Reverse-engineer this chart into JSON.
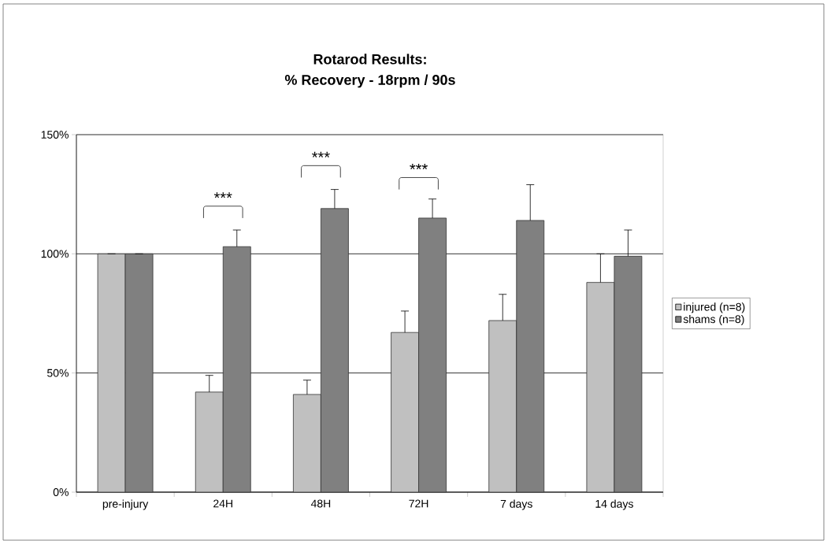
{
  "chart_data": {
    "type": "bar",
    "title": "Rotarod Results:",
    "subtitle": "% Recovery - 18rpm / 90s",
    "categories": [
      "pre-injury",
      "24H",
      "48H",
      "72H",
      "7 days",
      "14 days"
    ],
    "series": [
      {
        "name": "injured (n=8)",
        "color": "#c0c0c0",
        "values": [
          100,
          42,
          41,
          67,
          72,
          88
        ],
        "errors": [
          null,
          7,
          6,
          9,
          11,
          12
        ]
      },
      {
        "name": "shams (n=8)",
        "color": "#808080",
        "values": [
          100,
          103,
          119,
          115,
          114,
          99
        ],
        "errors": [
          null,
          7,
          8,
          8,
          15,
          11
        ]
      }
    ],
    "ylim": [
      0,
      150
    ],
    "yticks": [
      {
        "value": 0,
        "label": "0%"
      },
      {
        "value": 50,
        "label": "50%"
      },
      {
        "value": 100,
        "label": "100%"
      },
      {
        "value": 150,
        "label": "150%"
      }
    ],
    "grid": "y",
    "legend": "right",
    "annotations": [
      "***",
      "***",
      "***"
    ]
  }
}
